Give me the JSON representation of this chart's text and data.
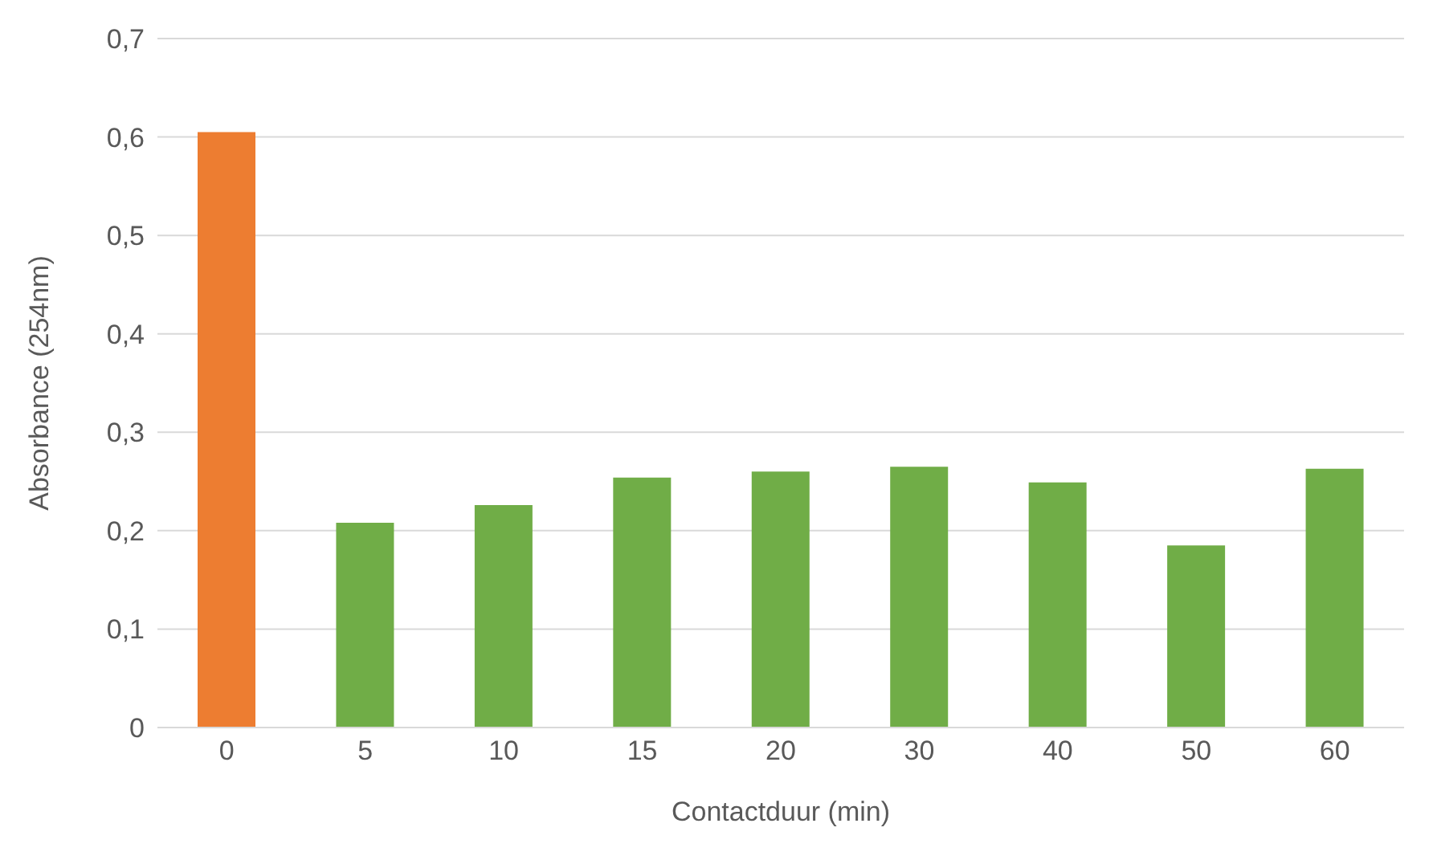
{
  "chart_data": {
    "type": "bar",
    "xlabel": "Contactduur (min)",
    "ylabel": "Absorbance (254nm)",
    "categories": [
      "0",
      "5",
      "10",
      "15",
      "20",
      "30",
      "40",
      "50",
      "60"
    ],
    "values": [
      0.605,
      0.208,
      0.226,
      0.254,
      0.26,
      0.265,
      0.249,
      0.185,
      0.263
    ],
    "colors": [
      "#ed7d31",
      "#70ad47",
      "#70ad47",
      "#70ad47",
      "#70ad47",
      "#70ad47",
      "#70ad47",
      "#70ad47",
      "#70ad47"
    ],
    "ylim": [
      0,
      0.7
    ],
    "yticks": [
      0,
      {
        "value": 0.1,
        "label": "0,1"
      },
      {
        "value": 0.2,
        "label": "0,2"
      },
      {
        "value": 0.3,
        "label": "0,3"
      },
      {
        "value": 0.4,
        "label": "0,4"
      },
      {
        "value": 0.5,
        "label": "0,5"
      },
      {
        "value": 0.6,
        "label": "0,6"
      },
      {
        "value": 0.7,
        "label": "0,7"
      }
    ],
    "grid": "y"
  }
}
